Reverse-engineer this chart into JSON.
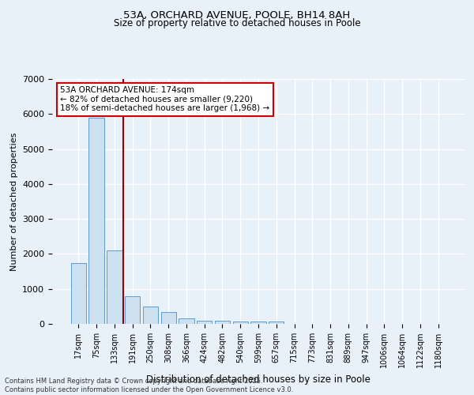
{
  "title1": "53A, ORCHARD AVENUE, POOLE, BH14 8AH",
  "title2": "Size of property relative to detached houses in Poole",
  "xlabel": "Distribution of detached houses by size in Poole",
  "ylabel": "Number of detached properties",
  "bar_labels": [
    "17sqm",
    "75sqm",
    "133sqm",
    "191sqm",
    "250sqm",
    "308sqm",
    "366sqm",
    "424sqm",
    "482sqm",
    "540sqm",
    "599sqm",
    "657sqm",
    "715sqm",
    "773sqm",
    "831sqm",
    "889sqm",
    "947sqm",
    "1006sqm",
    "1064sqm",
    "1122sqm",
    "1180sqm"
  ],
  "bar_values": [
    1750,
    5900,
    2100,
    800,
    500,
    350,
    150,
    100,
    80,
    70,
    65,
    65,
    0,
    0,
    0,
    0,
    0,
    0,
    0,
    0,
    0
  ],
  "bar_color": "#cce0f0",
  "bar_edge_color": "#5b9bd5",
  "vline_color": "#990000",
  "vline_pos": 2.5,
  "annotation_text": "53A ORCHARD AVENUE: 174sqm\n← 82% of detached houses are smaller (9,220)\n18% of semi-detached houses are larger (1,968) →",
  "annotation_box_color": "#cc0000",
  "annotation_bg_color": "#ffffff",
  "ylim": [
    0,
    7000
  ],
  "yticks": [
    0,
    1000,
    2000,
    3000,
    4000,
    5000,
    6000,
    7000
  ],
  "background_color": "#e8f0f8",
  "grid_color": "#ffffff",
  "footer_line1": "Contains HM Land Registry data © Crown copyright and database right 2025.",
  "footer_line2": "Contains public sector information licensed under the Open Government Licence v3.0."
}
